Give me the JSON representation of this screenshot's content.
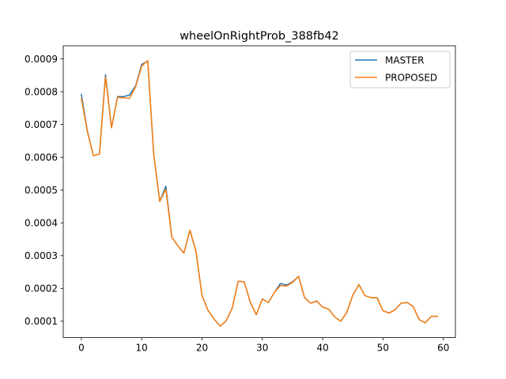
{
  "chart_data": {
    "type": "line",
    "title": "wheelOnRightProb_388fb42",
    "xlabel": "",
    "ylabel": "",
    "xlim": [
      -3.0,
      62.0
    ],
    "ylim": [
      5e-05,
      0.00094
    ],
    "xticks": [
      0,
      10,
      20,
      30,
      40,
      50,
      60
    ],
    "xtick_labels": [
      "0",
      "10",
      "20",
      "30",
      "40",
      "50",
      "60"
    ],
    "yticks": [
      0.0001,
      0.0002,
      0.0003,
      0.0004,
      0.0005,
      0.0006,
      0.0007,
      0.0008,
      0.0009
    ],
    "ytick_labels": [
      "0.0001",
      "0.0002",
      "0.0003",
      "0.0004",
      "0.0005",
      "0.0006",
      "0.0007",
      "0.0008",
      "0.0009"
    ],
    "grid": false,
    "legend_position": "top-right",
    "x": [
      0,
      1,
      2,
      3,
      4,
      5,
      6,
      7,
      8,
      9,
      10,
      11,
      12,
      13,
      14,
      15,
      16,
      17,
      18,
      19,
      20,
      21,
      22,
      23,
      24,
      25,
      26,
      27,
      28,
      29,
      30,
      31,
      32,
      33,
      34,
      35,
      36,
      37,
      38,
      39,
      40,
      41,
      42,
      43,
      44,
      45,
      46,
      47,
      48,
      49,
      50,
      51,
      52,
      53,
      54,
      55,
      56,
      57,
      58,
      59
    ],
    "series": [
      {
        "name": "MASTER",
        "color": "#1f77b4",
        "values": [
          0.000792,
          0.00068,
          0.000605,
          0.00061,
          0.000852,
          0.00069,
          0.000785,
          0.000785,
          0.00079,
          0.000818,
          0.000883,
          0.000893,
          0.000608,
          0.000465,
          0.000512,
          0.000356,
          0.00033,
          0.000308,
          0.000377,
          0.000313,
          0.000178,
          0.000133,
          0.000107,
          8.5e-05,
          0.000101,
          0.00014,
          0.000222,
          0.00022,
          0.000158,
          0.00012,
          0.000168,
          0.000157,
          0.000188,
          0.000215,
          0.00021,
          0.00022,
          0.000237,
          0.000172,
          0.000155,
          0.000162,
          0.000143,
          0.000137,
          0.000113,
          0.0001,
          0.000127,
          0.00018,
          0.000212,
          0.000178,
          0.000172,
          0.000172,
          0.000132,
          0.000125,
          0.000135,
          0.000155,
          0.000157,
          0.000145,
          0.000105,
          9.5e-05,
          0.000115,
          0.000115
        ]
      },
      {
        "name": "PROPOSED",
        "color": "#ff7f0e",
        "values": [
          0.00078,
          0.000678,
          0.000605,
          0.00061,
          0.000845,
          0.00069,
          0.000783,
          0.000781,
          0.00078,
          0.000815,
          0.000878,
          0.000895,
          0.000608,
          0.000465,
          0.000503,
          0.000356,
          0.00033,
          0.000308,
          0.000378,
          0.000313,
          0.000178,
          0.000133,
          0.000107,
          8.5e-05,
          0.000101,
          0.00014,
          0.000222,
          0.00022,
          0.000158,
          0.00012,
          0.000168,
          0.000157,
          0.000188,
          0.000209,
          0.000207,
          0.000218,
          0.000237,
          0.000172,
          0.000155,
          0.000161,
          0.000143,
          0.000137,
          0.000113,
          0.0001,
          0.000127,
          0.00018,
          0.000212,
          0.000178,
          0.000172,
          0.000172,
          0.000132,
          0.000125,
          0.000135,
          0.000155,
          0.000157,
          0.000145,
          0.000105,
          9.5e-05,
          0.000115,
          0.000115
        ]
      }
    ]
  }
}
